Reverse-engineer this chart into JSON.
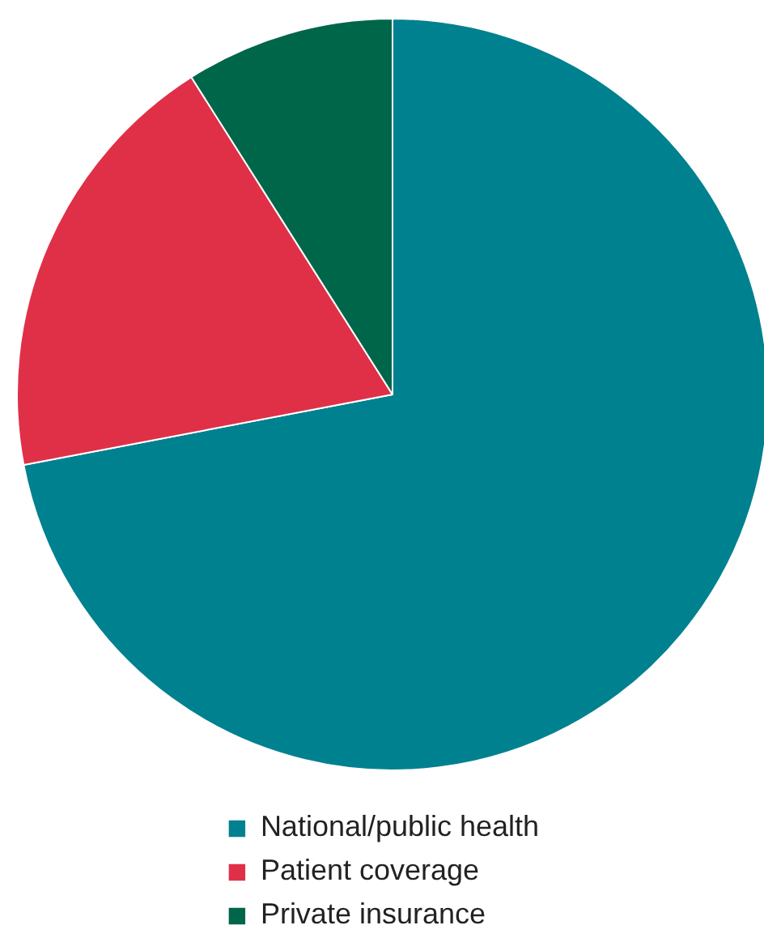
{
  "chart_data": {
    "type": "pie",
    "categories": [
      "National/public health",
      "Patient coverage",
      "Private insurance"
    ],
    "values": [
      72,
      19,
      9
    ],
    "colors": [
      "#00818f",
      "#e03048",
      "#00664a"
    ],
    "legend": "bottom"
  }
}
